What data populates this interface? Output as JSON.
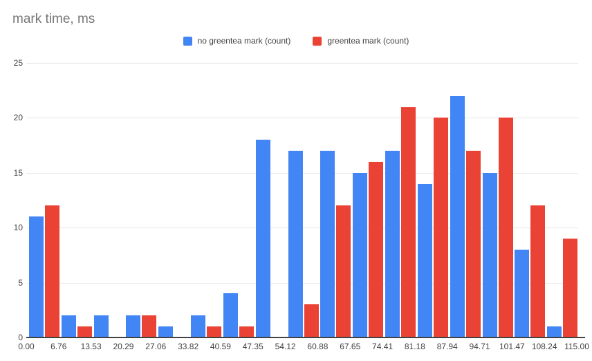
{
  "title": "mark time, ms",
  "legend": {
    "items": [
      {
        "label": "no greentea mark (count)",
        "color": "#4285F4"
      },
      {
        "label": "greentea mark (count)",
        "color": "#EA4335"
      }
    ]
  },
  "colors": {
    "series_blue": "#4285F4",
    "series_red": "#EA4335",
    "gridline": "#e6e6e6",
    "axis_line": "#424242",
    "title_text": "#757575",
    "tick_text": "#424242"
  },
  "chart_data": {
    "type": "bar",
    "subtype": "grouped-histogram",
    "title": "mark time, ms",
    "x_tick_labels": [
      "0.00",
      "6.76",
      "13.53",
      "20.29",
      "27.06",
      "33.82",
      "40.59",
      "47.35",
      "54.12",
      "60.88",
      "67.65",
      "74.41",
      "81.18",
      "87.94",
      "94.71",
      "101.47",
      "108.24",
      "115.00"
    ],
    "bin_count": 17,
    "series": [
      {
        "name": "no greentea mark (count)",
        "color": "#4285F4",
        "values": [
          11,
          2,
          2,
          2,
          1,
          2,
          4,
          18,
          17,
          17,
          15,
          17,
          14,
          22,
          15,
          8,
          1
        ]
      },
      {
        "name": "greentea mark (count)",
        "color": "#EA4335",
        "values": [
          12,
          1,
          0,
          2,
          0,
          1,
          1,
          0,
          3,
          12,
          16,
          21,
          20,
          17,
          20,
          12,
          9
        ]
      }
    ],
    "xlabel": "",
    "ylabel": "",
    "ylim": [
      0,
      25
    ],
    "yticks": [
      0,
      5,
      10,
      15,
      20,
      25
    ],
    "grid": true,
    "legend_position": "top-center"
  }
}
